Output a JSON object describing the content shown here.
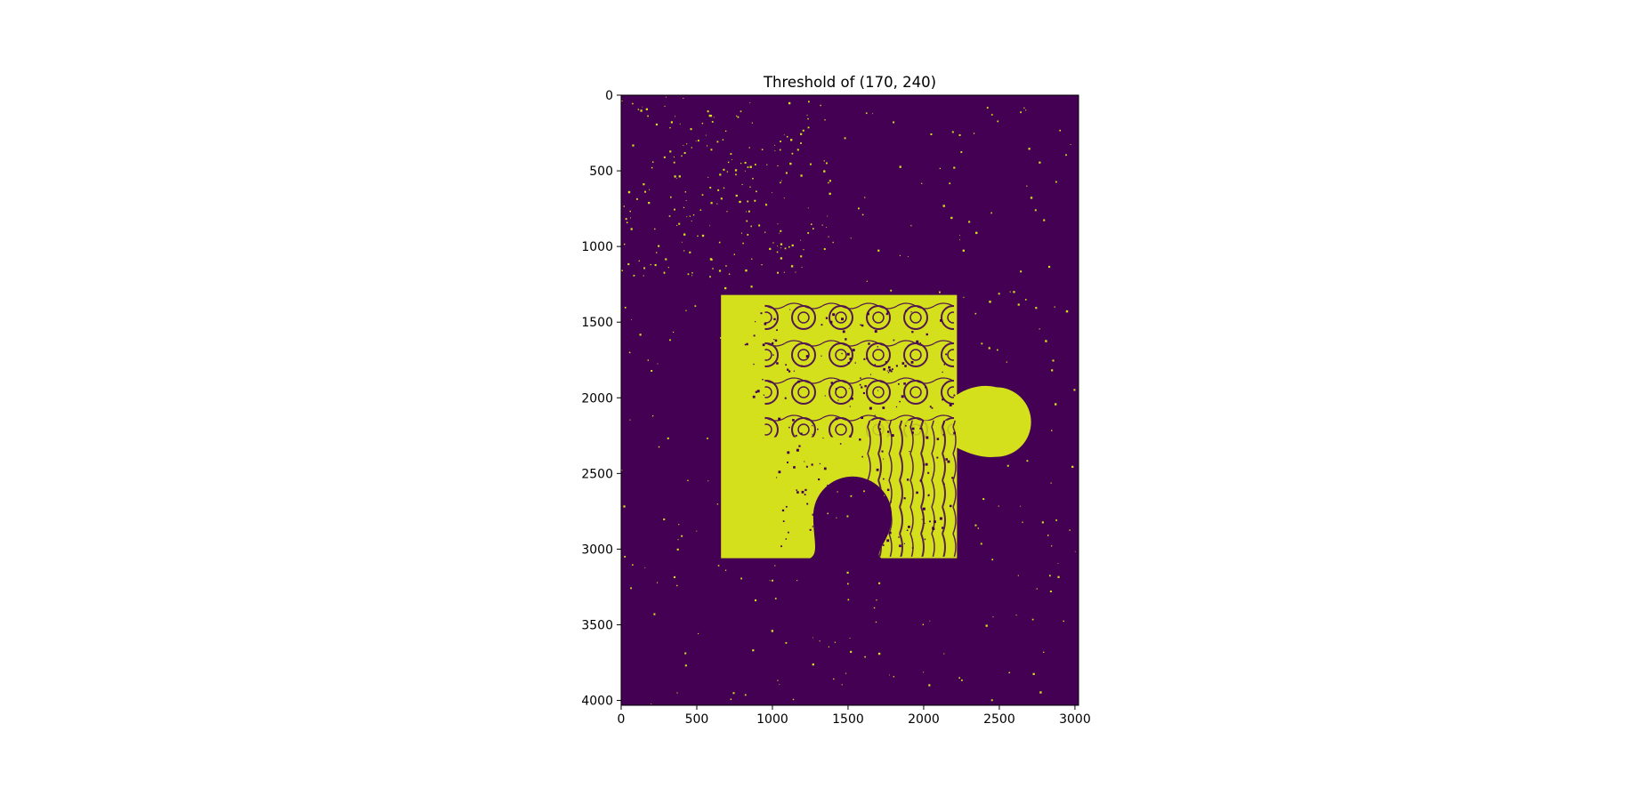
{
  "chart_data": {
    "type": "heatmap",
    "title": "Threshold of (170, 240)",
    "xlabel": "",
    "ylabel": "",
    "xlim": [
      0,
      3024
    ],
    "ylim": [
      4032,
      0
    ],
    "x_ticks": [
      0,
      500,
      1000,
      1500,
      2000,
      2500,
      3000
    ],
    "y_ticks": [
      0,
      500,
      1000,
      1500,
      2000,
      2500,
      3000,
      3500,
      4000
    ],
    "x_tick_labels": [
      "0",
      "500",
      "1000",
      "1500",
      "2000",
      "2500",
      "3000"
    ],
    "y_tick_labels": [
      "0",
      "500",
      "1000",
      "1500",
      "2000",
      "2500",
      "3000",
      "3500",
      "4000"
    ],
    "colormap": "viridis",
    "background_color": "#440154",
    "foreground_color": "#d3e01b",
    "grid": false,
    "legend": "none",
    "foreground_shape": {
      "body": {
        "x": [
          660,
          2220
        ],
        "y": [
          1320,
          3060
        ]
      },
      "tab_right": {
        "cx": 2480,
        "cy": 2160,
        "r": 230,
        "neck_y": [
          1980,
          2330
        ]
      },
      "notch_bottom": {
        "cx": 1530,
        "cy": 2780,
        "r": 260,
        "neck_x": [
          1250,
          1720
        ]
      }
    }
  }
}
